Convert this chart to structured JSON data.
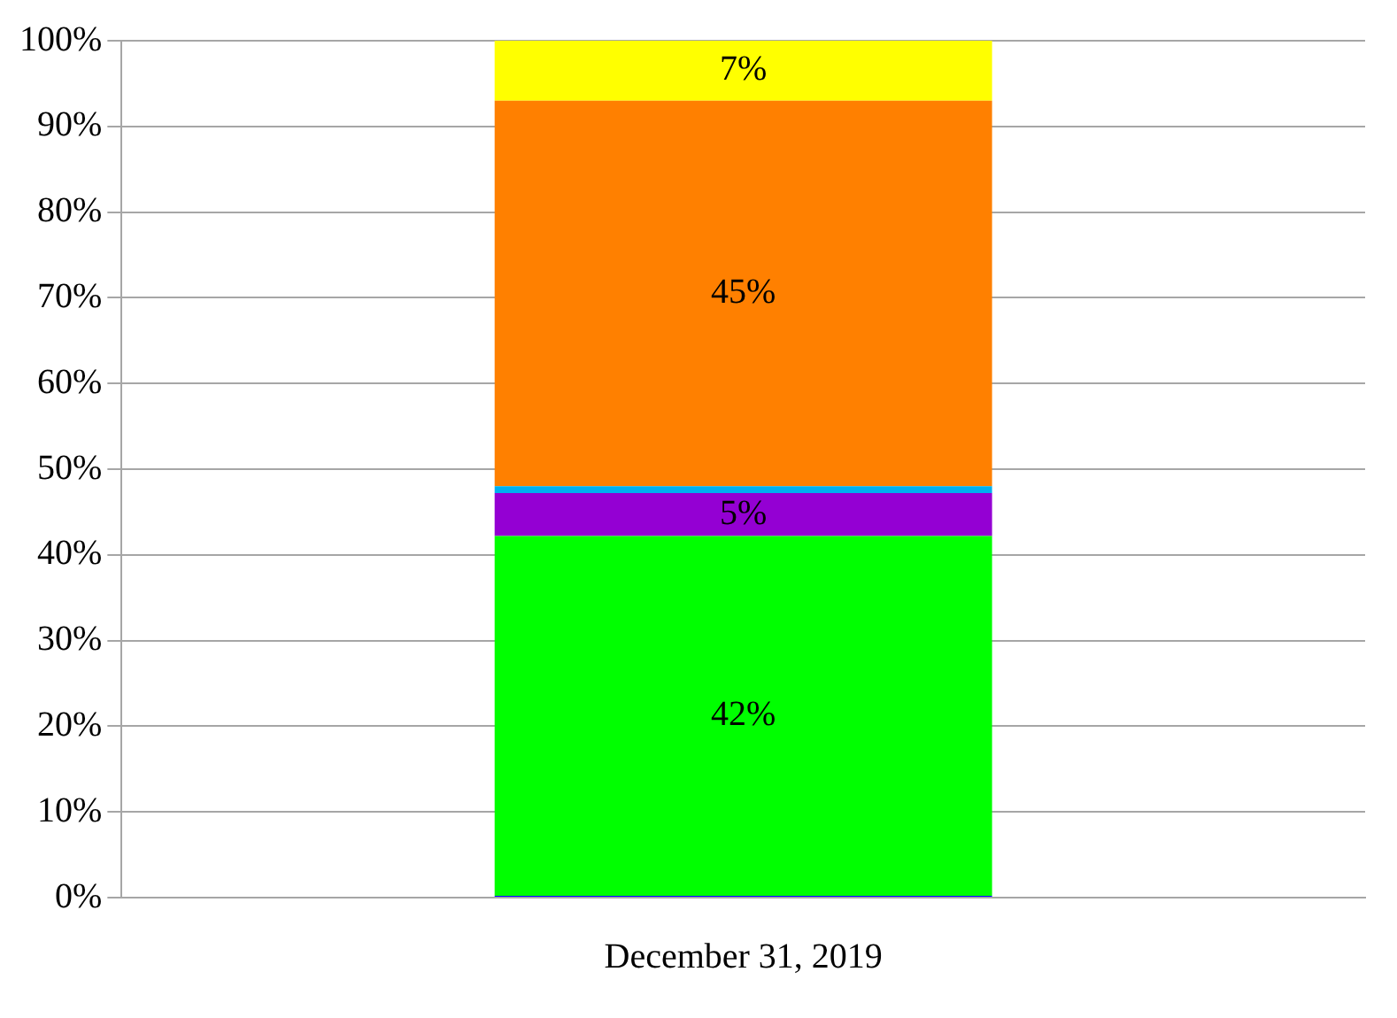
{
  "chart_data": {
    "type": "bar",
    "stacked": true,
    "categories": [
      "December 31, 2019"
    ],
    "series": [
      {
        "color": "#0000ff",
        "values": [
          0.2
        ],
        "value_labels": [
          null
        ]
      },
      {
        "color": "#00ff00",
        "values": [
          42
        ],
        "value_labels": [
          "42%"
        ]
      },
      {
        "color": "#9400d3",
        "values": [
          5
        ],
        "value_labels": [
          "5%"
        ]
      },
      {
        "color": "#00b0f0",
        "values": [
          0.8
        ],
        "value_labels": [
          null
        ]
      },
      {
        "color": "#ff8000",
        "values": [
          45
        ],
        "value_labels": [
          "45%"
        ]
      },
      {
        "color": "#ffff00",
        "values": [
          7
        ],
        "value_labels": [
          "7%"
        ]
      }
    ],
    "ylim": [
      0,
      100
    ],
    "yticks": [
      {
        "value": 0,
        "label": "0%"
      },
      {
        "value": 10,
        "label": "10%"
      },
      {
        "value": 20,
        "label": "20%"
      },
      {
        "value": 30,
        "label": "30%"
      },
      {
        "value": 40,
        "label": "40%"
      },
      {
        "value": 50,
        "label": "50%"
      },
      {
        "value": 60,
        "label": "60%"
      },
      {
        "value": 70,
        "label": "70%"
      },
      {
        "value": 80,
        "label": "80%"
      },
      {
        "value": 90,
        "label": "90%"
      },
      {
        "value": 100,
        "label": "100%"
      }
    ],
    "grid": "y",
    "legend": false
  }
}
